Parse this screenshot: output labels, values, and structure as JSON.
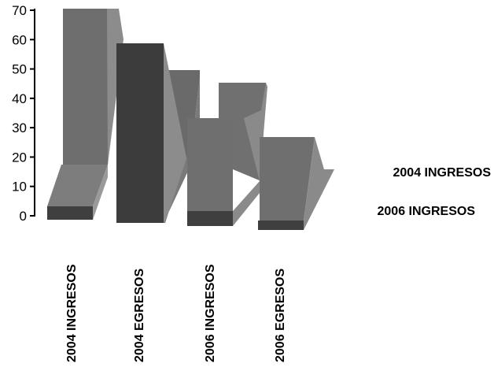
{
  "chart_data": {
    "type": "area",
    "title": "",
    "xlabel": "",
    "ylabel": "",
    "ylim": [
      0,
      70
    ],
    "yticks": [
      0,
      10,
      20,
      30,
      40,
      50,
      60,
      70
    ],
    "grid": false,
    "categories": [
      "2004 INGRESOS",
      "2004 EGRESOS",
      "2006 INGRESOS",
      "2006 EGRESOS"
    ],
    "series": [
      {
        "name": "2004 INGRESOS",
        "values": [
          71,
          59,
          50,
          45
        ]
      },
      {
        "name": "2006 INGRESOS",
        "values": [
          18,
          59,
          17,
          34
        ]
      }
    ],
    "colors": {
      "front": "#6f6f6f",
      "back": "#6a6a6a",
      "side": "#8a8a8a",
      "dark": "#3c3c3c",
      "axis": "#000000"
    }
  }
}
